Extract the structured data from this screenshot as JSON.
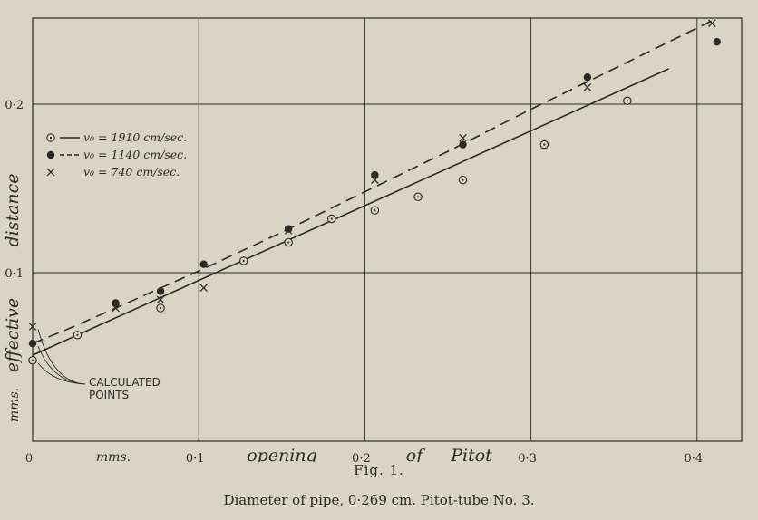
{
  "figure": {
    "label": "Fig. 1.",
    "caption": "Diameter of pipe, 0·269 cm.   Pitot-tube No. 3."
  },
  "chart_data": {
    "type": "scatter",
    "x_axis": {
      "range": [
        0,
        0.42
      ],
      "ticks": [
        0,
        0.1,
        0.2,
        0.3,
        0.4
      ],
      "tick_labels": [
        "0",
        "0·1",
        "0·2",
        "0·3",
        "0·4"
      ],
      "label_words": [
        "mms.",
        "opening",
        "of",
        "Pitot"
      ]
    },
    "y_axis": {
      "range": [
        0,
        0.255
      ],
      "ticks": [
        0.1,
        0.2
      ],
      "tick_labels": [
        "0·1",
        "0·2"
      ],
      "label_words": [
        "mms.",
        "effective",
        "distance"
      ]
    },
    "grid": true,
    "legend_position": "top-left",
    "series": [
      {
        "name": "v₀ = 1910 cm/sec.",
        "marker": "circle-dot",
        "line_style": "solid",
        "points": [
          [
            0,
            0.048
          ],
          [
            0.027,
            0.063
          ],
          [
            0.077,
            0.079
          ],
          [
            0.127,
            0.107
          ],
          [
            0.154,
            0.118
          ],
          [
            0.18,
            0.132
          ],
          [
            0.206,
            0.137
          ],
          [
            0.232,
            0.145
          ],
          [
            0.259,
            0.155
          ],
          [
            0.308,
            0.176
          ],
          [
            0.358,
            0.202
          ]
        ],
        "fit_line": [
          [
            0,
            0.051
          ],
          [
            0.383,
            0.221
          ]
        ]
      },
      {
        "name": "v₀ = 1140 cm/sec.",
        "marker": "filled-circle",
        "line_style": "dashed",
        "points": [
          [
            0,
            0.058
          ],
          [
            0.05,
            0.082
          ],
          [
            0.077,
            0.089
          ],
          [
            0.103,
            0.105
          ],
          [
            0.154,
            0.126
          ],
          [
            0.206,
            0.158
          ],
          [
            0.259,
            0.176
          ],
          [
            0.334,
            0.216
          ],
          [
            0.412,
            0.237
          ]
        ],
        "fit_line": [
          [
            0,
            0.058
          ],
          [
            0.02,
            0.066
          ],
          [
            0.05,
            0.079
          ],
          [
            0.1,
            0.101
          ],
          [
            0.15,
            0.124
          ],
          [
            0.2,
            0.148
          ],
          [
            0.25,
            0.172
          ],
          [
            0.3,
            0.197
          ],
          [
            0.35,
            0.221
          ],
          [
            0.41,
            0.25
          ]
        ]
      },
      {
        "name": "v₀ = 740 cm/sec.",
        "marker": "cross",
        "line_style": "none",
        "points": [
          [
            0,
            0.068
          ],
          [
            0.05,
            0.079
          ],
          [
            0.077,
            0.084
          ],
          [
            0.103,
            0.091
          ],
          [
            0.154,
            0.125
          ],
          [
            0.206,
            0.155
          ],
          [
            0.259,
            0.18
          ],
          [
            0.334,
            0.21
          ],
          [
            0.409,
            0.248
          ]
        ]
      }
    ],
    "annotations": [
      {
        "text_lines": [
          "CALCULATED",
          "POINTS"
        ],
        "points": [
          [
            0,
            0.048
          ],
          [
            0,
            0.058
          ],
          [
            0,
            0.068
          ]
        ]
      }
    ]
  }
}
